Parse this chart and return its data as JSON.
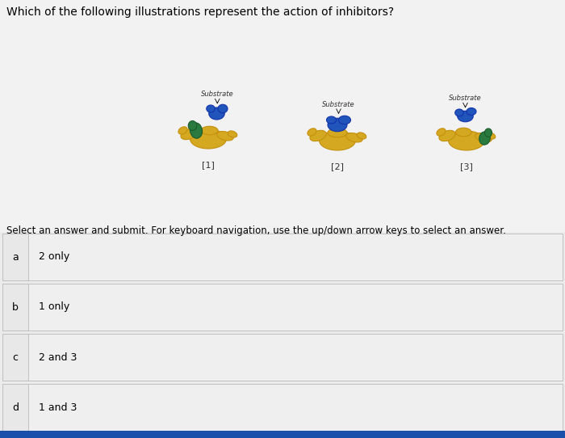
{
  "title": "Which of the following illustrations represent the action of inhibitors?",
  "title_fontsize": 10,
  "instruction": "Select an answer and submit. For keyboard navigation, use the up/down arrow keys to select an answer.",
  "instruction_fontsize": 8.5,
  "background_color": "#e8e8e8",
  "answer_bg": "#efefef",
  "answer_border": "#c0c0c0",
  "options": [
    {
      "label": "a",
      "text": "2 only"
    },
    {
      "label": "b",
      "text": "1 only"
    },
    {
      "label": "c",
      "text": "2 and 3"
    },
    {
      "label": "d",
      "text": "1 and 3"
    }
  ],
  "image_labels": [
    "[1]",
    "[2]",
    "[3]"
  ],
  "substrate_labels": [
    "Substrate",
    "Substrate",
    "Substrate"
  ],
  "label_fontsize": 8,
  "option_label_fontsize": 9,
  "option_text_fontsize": 9,
  "bottom_bar_color": "#1a4faa",
  "enzyme_color": "#d4a820",
  "enzyme_edge": "#c49010",
  "blue_color": "#2255bb",
  "blue_edge": "#1133aa",
  "green_color": "#2a7a40",
  "green_edge": "#1a5a2a"
}
